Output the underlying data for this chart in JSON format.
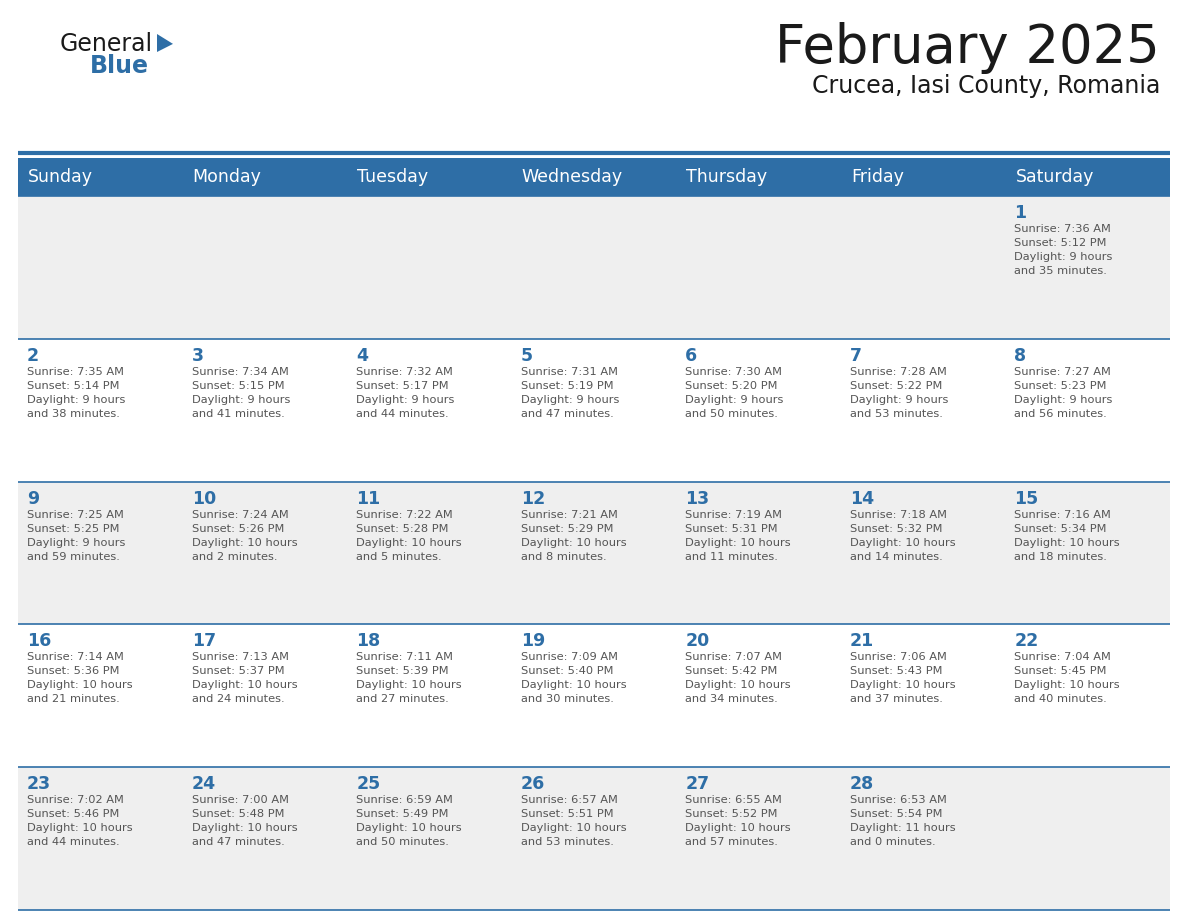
{
  "title": "February 2025",
  "subtitle": "Crucea, Iasi County, Romania",
  "header_bg": "#2E6EA6",
  "header_text_color": "#FFFFFF",
  "cell_bg_odd": "#EFEFEF",
  "cell_bg_even": "#FFFFFF",
  "day_number_color": "#2E6EA6",
  "info_text_color": "#555555",
  "border_color": "#2E6EA6",
  "logo_black": "#1a1a1a",
  "logo_blue": "#2E6EA6",
  "days_of_week": [
    "Sunday",
    "Monday",
    "Tuesday",
    "Wednesday",
    "Thursday",
    "Friday",
    "Saturday"
  ],
  "weeks": [
    [
      {
        "day": null,
        "info": null
      },
      {
        "day": null,
        "info": null
      },
      {
        "day": null,
        "info": null
      },
      {
        "day": null,
        "info": null
      },
      {
        "day": null,
        "info": null
      },
      {
        "day": null,
        "info": null
      },
      {
        "day": "1",
        "info": "Sunrise: 7:36 AM\nSunset: 5:12 PM\nDaylight: 9 hours\nand 35 minutes."
      }
    ],
    [
      {
        "day": "2",
        "info": "Sunrise: 7:35 AM\nSunset: 5:14 PM\nDaylight: 9 hours\nand 38 minutes."
      },
      {
        "day": "3",
        "info": "Sunrise: 7:34 AM\nSunset: 5:15 PM\nDaylight: 9 hours\nand 41 minutes."
      },
      {
        "day": "4",
        "info": "Sunrise: 7:32 AM\nSunset: 5:17 PM\nDaylight: 9 hours\nand 44 minutes."
      },
      {
        "day": "5",
        "info": "Sunrise: 7:31 AM\nSunset: 5:19 PM\nDaylight: 9 hours\nand 47 minutes."
      },
      {
        "day": "6",
        "info": "Sunrise: 7:30 AM\nSunset: 5:20 PM\nDaylight: 9 hours\nand 50 minutes."
      },
      {
        "day": "7",
        "info": "Sunrise: 7:28 AM\nSunset: 5:22 PM\nDaylight: 9 hours\nand 53 minutes."
      },
      {
        "day": "8",
        "info": "Sunrise: 7:27 AM\nSunset: 5:23 PM\nDaylight: 9 hours\nand 56 minutes."
      }
    ],
    [
      {
        "day": "9",
        "info": "Sunrise: 7:25 AM\nSunset: 5:25 PM\nDaylight: 9 hours\nand 59 minutes."
      },
      {
        "day": "10",
        "info": "Sunrise: 7:24 AM\nSunset: 5:26 PM\nDaylight: 10 hours\nand 2 minutes."
      },
      {
        "day": "11",
        "info": "Sunrise: 7:22 AM\nSunset: 5:28 PM\nDaylight: 10 hours\nand 5 minutes."
      },
      {
        "day": "12",
        "info": "Sunrise: 7:21 AM\nSunset: 5:29 PM\nDaylight: 10 hours\nand 8 minutes."
      },
      {
        "day": "13",
        "info": "Sunrise: 7:19 AM\nSunset: 5:31 PM\nDaylight: 10 hours\nand 11 minutes."
      },
      {
        "day": "14",
        "info": "Sunrise: 7:18 AM\nSunset: 5:32 PM\nDaylight: 10 hours\nand 14 minutes."
      },
      {
        "day": "15",
        "info": "Sunrise: 7:16 AM\nSunset: 5:34 PM\nDaylight: 10 hours\nand 18 minutes."
      }
    ],
    [
      {
        "day": "16",
        "info": "Sunrise: 7:14 AM\nSunset: 5:36 PM\nDaylight: 10 hours\nand 21 minutes."
      },
      {
        "day": "17",
        "info": "Sunrise: 7:13 AM\nSunset: 5:37 PM\nDaylight: 10 hours\nand 24 minutes."
      },
      {
        "day": "18",
        "info": "Sunrise: 7:11 AM\nSunset: 5:39 PM\nDaylight: 10 hours\nand 27 minutes."
      },
      {
        "day": "19",
        "info": "Sunrise: 7:09 AM\nSunset: 5:40 PM\nDaylight: 10 hours\nand 30 minutes."
      },
      {
        "day": "20",
        "info": "Sunrise: 7:07 AM\nSunset: 5:42 PM\nDaylight: 10 hours\nand 34 minutes."
      },
      {
        "day": "21",
        "info": "Sunrise: 7:06 AM\nSunset: 5:43 PM\nDaylight: 10 hours\nand 37 minutes."
      },
      {
        "day": "22",
        "info": "Sunrise: 7:04 AM\nSunset: 5:45 PM\nDaylight: 10 hours\nand 40 minutes."
      }
    ],
    [
      {
        "day": "23",
        "info": "Sunrise: 7:02 AM\nSunset: 5:46 PM\nDaylight: 10 hours\nand 44 minutes."
      },
      {
        "day": "24",
        "info": "Sunrise: 7:00 AM\nSunset: 5:48 PM\nDaylight: 10 hours\nand 47 minutes."
      },
      {
        "day": "25",
        "info": "Sunrise: 6:59 AM\nSunset: 5:49 PM\nDaylight: 10 hours\nand 50 minutes."
      },
      {
        "day": "26",
        "info": "Sunrise: 6:57 AM\nSunset: 5:51 PM\nDaylight: 10 hours\nand 53 minutes."
      },
      {
        "day": "27",
        "info": "Sunrise: 6:55 AM\nSunset: 5:52 PM\nDaylight: 10 hours\nand 57 minutes."
      },
      {
        "day": "28",
        "info": "Sunrise: 6:53 AM\nSunset: 5:54 PM\nDaylight: 11 hours\nand 0 minutes."
      },
      {
        "day": null,
        "info": null
      }
    ]
  ]
}
